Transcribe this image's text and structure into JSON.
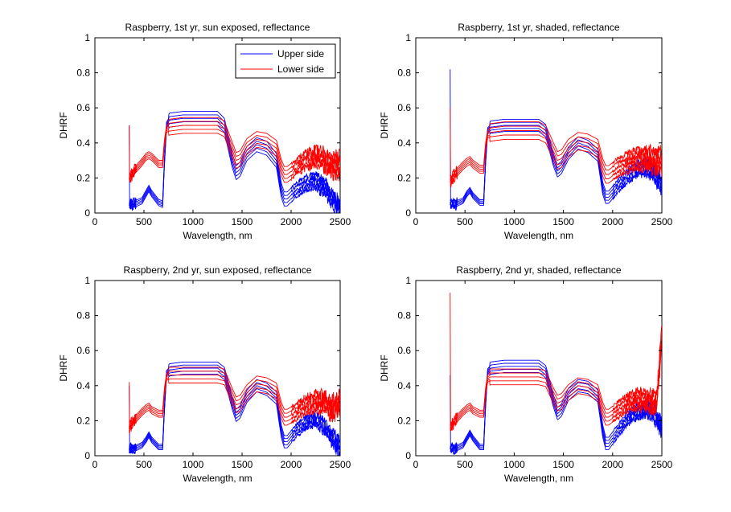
{
  "figure": {
    "background": "#ffffff"
  },
  "chart_data": [
    {
      "type": "line",
      "title": "Raspberry, 1st yr, sun exposed, reflectance",
      "xlabel": "Wavelength, nm",
      "ylabel": "DHRF",
      "xlim": [
        0,
        2500
      ],
      "ylim": [
        0,
        1
      ],
      "xticks": [
        "0",
        "500",
        "1000",
        "1500",
        "2000",
        "2500"
      ],
      "yticks": [
        "0",
        "0.2",
        "0.4",
        "0.6",
        "0.8",
        "1"
      ],
      "grid": false,
      "legend": {
        "position": "top-right",
        "entries": [
          "Upper side",
          "Lower side"
        ]
      },
      "series": [
        {
          "name": "Upper side",
          "color": "#0000ff",
          "repeats": 5,
          "spread": 0.04,
          "noise": 0.06,
          "spike": 0.5,
          "x": [
            350,
            400,
            480,
            520,
            550,
            580,
            650,
            690,
            710,
            730,
            760,
            900,
            1000,
            1150,
            1250,
            1320,
            1400,
            1440,
            1480,
            1550,
            1650,
            1750,
            1850,
            1900,
            1930,
            1960,
            2050,
            2150,
            2250,
            2350,
            2400,
            2450,
            2500
          ],
          "y": [
            0.05,
            0.05,
            0.07,
            0.11,
            0.14,
            0.11,
            0.06,
            0.05,
            0.3,
            0.5,
            0.53,
            0.54,
            0.54,
            0.54,
            0.54,
            0.5,
            0.3,
            0.23,
            0.25,
            0.34,
            0.39,
            0.37,
            0.3,
            0.13,
            0.08,
            0.08,
            0.13,
            0.17,
            0.18,
            0.14,
            0.1,
            0.06,
            0.02
          ]
        },
        {
          "name": "Lower side",
          "color": "#ff0000",
          "repeats": 5,
          "spread": 0.045,
          "noise": 0.09,
          "spike": 0.5,
          "x": [
            350,
            400,
            480,
            520,
            550,
            580,
            650,
            690,
            710,
            730,
            760,
            900,
            1000,
            1150,
            1250,
            1320,
            1400,
            1440,
            1480,
            1550,
            1650,
            1750,
            1850,
            1900,
            1930,
            1960,
            2050,
            2150,
            2250,
            2350,
            2400,
            2450,
            2500
          ],
          "y": [
            0.2,
            0.24,
            0.29,
            0.32,
            0.33,
            0.32,
            0.28,
            0.28,
            0.4,
            0.48,
            0.49,
            0.5,
            0.5,
            0.5,
            0.5,
            0.48,
            0.36,
            0.3,
            0.31,
            0.38,
            0.42,
            0.41,
            0.37,
            0.26,
            0.22,
            0.22,
            0.26,
            0.3,
            0.32,
            0.3,
            0.28,
            0.27,
            0.28
          ]
        }
      ]
    },
    {
      "type": "line",
      "title": "Raspberry, 1st yr, shaded, reflectance",
      "xlabel": "Wavelength, nm",
      "ylabel": "DHRF",
      "xlim": [
        0,
        2500
      ],
      "ylim": [
        0,
        1
      ],
      "xticks": [
        "0",
        "500",
        "1000",
        "1500",
        "2000",
        "2500"
      ],
      "yticks": [
        "0",
        "0.2",
        "0.4",
        "0.6",
        "0.8",
        "1"
      ],
      "grid": false,
      "series": [
        {
          "name": "Upper side",
          "color": "#0000ff",
          "repeats": 5,
          "spread": 0.035,
          "noise": 0.06,
          "spike": 0.82,
          "x": [
            350,
            400,
            480,
            520,
            550,
            580,
            650,
            690,
            710,
            730,
            760,
            900,
            1000,
            1150,
            1250,
            1320,
            1400,
            1440,
            1480,
            1550,
            1650,
            1750,
            1850,
            1900,
            1930,
            1960,
            2050,
            2150,
            2250,
            2350,
            2400,
            2450,
            2500
          ],
          "y": [
            0.05,
            0.05,
            0.07,
            0.11,
            0.13,
            0.1,
            0.06,
            0.06,
            0.3,
            0.47,
            0.49,
            0.5,
            0.5,
            0.5,
            0.5,
            0.47,
            0.3,
            0.24,
            0.26,
            0.34,
            0.4,
            0.38,
            0.33,
            0.14,
            0.09,
            0.09,
            0.15,
            0.21,
            0.25,
            0.26,
            0.24,
            0.2,
            0.15
          ]
        },
        {
          "name": "Lower side",
          "color": "#ff0000",
          "repeats": 5,
          "spread": 0.05,
          "noise": 0.08,
          "spike": 0.6,
          "x": [
            350,
            400,
            480,
            520,
            550,
            580,
            650,
            690,
            710,
            730,
            760,
            900,
            1000,
            1150,
            1250,
            1320,
            1400,
            1440,
            1480,
            1550,
            1650,
            1750,
            1850,
            1900,
            1930,
            1960,
            2050,
            2150,
            2250,
            2350,
            2400,
            2450,
            2500
          ],
          "y": [
            0.18,
            0.22,
            0.27,
            0.29,
            0.3,
            0.28,
            0.25,
            0.25,
            0.38,
            0.45,
            0.46,
            0.47,
            0.47,
            0.47,
            0.47,
            0.45,
            0.35,
            0.3,
            0.31,
            0.37,
            0.41,
            0.4,
            0.37,
            0.26,
            0.22,
            0.22,
            0.26,
            0.29,
            0.31,
            0.31,
            0.3,
            0.3,
            0.3
          ]
        }
      ]
    },
    {
      "type": "line",
      "title": "Raspberry, 2nd yr, sun exposed, reflectance",
      "xlabel": "Wavelength, nm",
      "ylabel": "DHRF",
      "xlim": [
        0,
        2500
      ],
      "ylim": [
        0,
        1
      ],
      "xticks": [
        "0",
        "500",
        "1000",
        "1500",
        "2000",
        "2500"
      ],
      "yticks": [
        "0",
        "0.2",
        "0.4",
        "0.6",
        "0.8",
        "1"
      ],
      "grid": false,
      "series": [
        {
          "name": "Upper side",
          "color": "#0000ff",
          "repeats": 5,
          "spread": 0.035,
          "noise": 0.06,
          "spike": 0.4,
          "x": [
            350,
            400,
            480,
            520,
            550,
            580,
            650,
            690,
            710,
            730,
            760,
            900,
            1000,
            1150,
            1250,
            1320,
            1400,
            1440,
            1480,
            1550,
            1650,
            1750,
            1850,
            1900,
            1930,
            1960,
            2050,
            2150,
            2250,
            2350,
            2400,
            2450,
            2500
          ],
          "y": [
            0.04,
            0.04,
            0.06,
            0.09,
            0.12,
            0.09,
            0.05,
            0.05,
            0.28,
            0.47,
            0.49,
            0.5,
            0.5,
            0.5,
            0.5,
            0.47,
            0.3,
            0.23,
            0.25,
            0.34,
            0.4,
            0.38,
            0.33,
            0.14,
            0.08,
            0.08,
            0.14,
            0.19,
            0.21,
            0.16,
            0.12,
            0.08,
            0.04
          ]
        },
        {
          "name": "Lower side",
          "color": "#ff0000",
          "repeats": 5,
          "spread": 0.045,
          "noise": 0.09,
          "spike": 0.42,
          "x": [
            350,
            400,
            480,
            520,
            550,
            580,
            650,
            690,
            710,
            730,
            760,
            900,
            1000,
            1150,
            1250,
            1320,
            1400,
            1440,
            1480,
            1550,
            1650,
            1750,
            1850,
            1900,
            1930,
            1960,
            2050,
            2150,
            2250,
            2350,
            2400,
            2450,
            2500
          ],
          "y": [
            0.16,
            0.2,
            0.25,
            0.27,
            0.28,
            0.26,
            0.24,
            0.24,
            0.37,
            0.45,
            0.46,
            0.46,
            0.46,
            0.46,
            0.46,
            0.45,
            0.34,
            0.29,
            0.3,
            0.36,
            0.41,
            0.4,
            0.37,
            0.26,
            0.22,
            0.22,
            0.25,
            0.29,
            0.31,
            0.3,
            0.28,
            0.28,
            0.3
          ]
        }
      ]
    },
    {
      "type": "line",
      "title": "Raspberry, 2nd yr, shaded, reflectance",
      "xlabel": "Wavelength, nm",
      "ylabel": "DHRF",
      "xlim": [
        0,
        2500
      ],
      "ylim": [
        0,
        1
      ],
      "xticks": [
        "0",
        "500",
        "1000",
        "1500",
        "2000",
        "2500"
      ],
      "yticks": [
        "0",
        "0.2",
        "0.4",
        "0.6",
        "0.8",
        "1"
      ],
      "grid": false,
      "series": [
        {
          "name": "Upper side",
          "color": "#0000ff",
          "repeats": 5,
          "spread": 0.035,
          "noise": 0.06,
          "spike": 0.46,
          "x": [
            350,
            400,
            480,
            520,
            550,
            580,
            650,
            690,
            710,
            730,
            760,
            900,
            1000,
            1150,
            1250,
            1320,
            1400,
            1440,
            1480,
            1550,
            1650,
            1750,
            1850,
            1900,
            1930,
            1960,
            2050,
            2150,
            2250,
            2350,
            2400,
            2450,
            2500
          ],
          "y": [
            0.04,
            0.04,
            0.06,
            0.1,
            0.13,
            0.1,
            0.05,
            0.05,
            0.3,
            0.48,
            0.5,
            0.51,
            0.51,
            0.51,
            0.51,
            0.48,
            0.31,
            0.24,
            0.26,
            0.35,
            0.4,
            0.39,
            0.34,
            0.14,
            0.07,
            0.07,
            0.14,
            0.21,
            0.25,
            0.27,
            0.25,
            0.22,
            0.15
          ]
        },
        {
          "name": "Lower side",
          "color": "#ff0000",
          "repeats": 5,
          "spread": 0.045,
          "noise": 0.08,
          "spike": 0.93,
          "x": [
            350,
            400,
            480,
            520,
            550,
            580,
            650,
            690,
            710,
            730,
            760,
            900,
            1000,
            1150,
            1250,
            1320,
            1400,
            1440,
            1480,
            1550,
            1650,
            1750,
            1850,
            1900,
            1930,
            1960,
            2050,
            2150,
            2250,
            2350,
            2400,
            2450,
            2500
          ],
          "y": [
            0.16,
            0.2,
            0.25,
            0.27,
            0.28,
            0.26,
            0.24,
            0.24,
            0.37,
            0.44,
            0.45,
            0.45,
            0.45,
            0.45,
            0.45,
            0.44,
            0.34,
            0.3,
            0.31,
            0.36,
            0.4,
            0.39,
            0.36,
            0.26,
            0.22,
            0.22,
            0.26,
            0.3,
            0.32,
            0.32,
            0.3,
            0.32,
            0.7
          ]
        }
      ]
    }
  ]
}
